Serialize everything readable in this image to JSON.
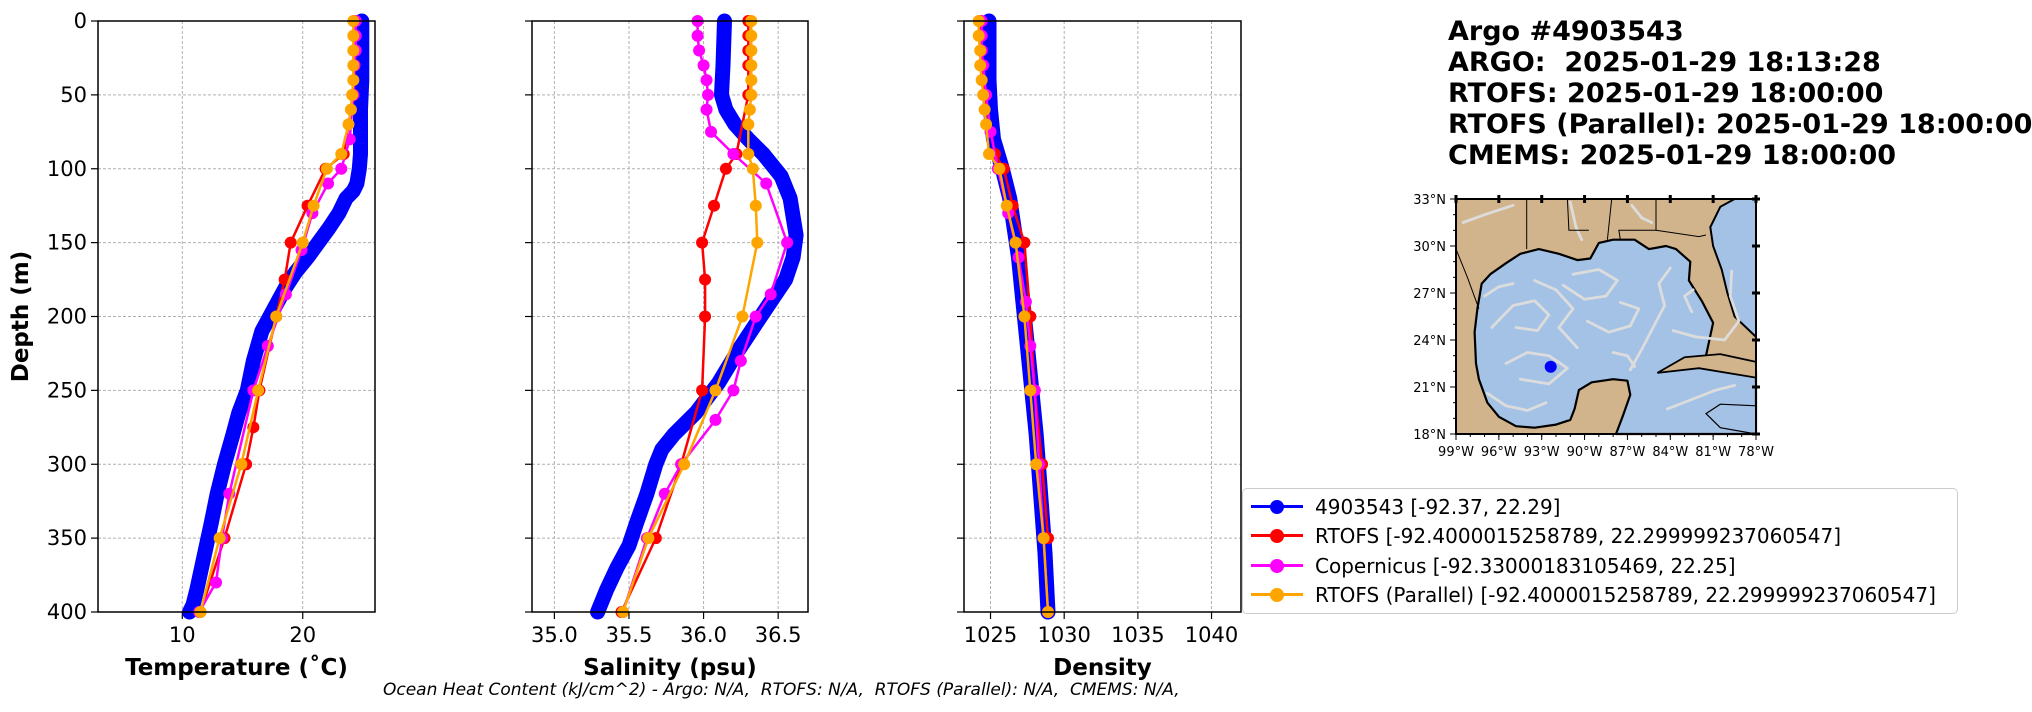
{
  "title_lines": {
    "line1": "Argo #4903543",
    "line2": "ARGO:  2025-01-29 18:13:28",
    "line3": "RTOFS: 2025-01-29 18:00:00",
    "line4": "RTOFS (Parallel): 2025-01-29 18:00:00",
    "line5": "CMEMS: 2025-01-29 18:00:00"
  },
  "footer": {
    "ohc": "Ocean Heat Content (kJ/cm^2) - Argo: N/A,  RTOFS: N/A,  RTOFS (Parallel): N/A,  CMEMS: N/A,"
  },
  "colors": {
    "argo": "#0000ff",
    "rtofs": "#ff0000",
    "copernicus": "#ff00ff",
    "rtofs_parallel": "#ffa500",
    "land": "#d2b48c",
    "ocean": "#a4c2e6",
    "streamline": "#dcdcdc"
  },
  "legend": [
    {
      "label": "4903543 [-92.37, 22.29]",
      "color": "#0000ff"
    },
    {
      "label": "RTOFS [-92.4000015258789, 22.299999237060547]",
      "color": "#ff0000"
    },
    {
      "label": "Copernicus [-92.33000183105469, 22.25]",
      "color": "#ff00ff"
    },
    {
      "label": "RTOFS (Parallel) [-92.4000015258789, 22.299999237060547]",
      "color": "#ffa500"
    }
  ],
  "chart_data": [
    {
      "type": "line",
      "xlabel": "Temperature (˚C)",
      "ylabel": "Depth (m)",
      "xlim": [
        3,
        26
      ],
      "ylim": [
        400,
        0
      ],
      "xticks": [
        10,
        20
      ],
      "yticks": [
        0,
        50,
        100,
        150,
        200,
        250,
        300,
        350,
        400
      ],
      "grid": true,
      "series": [
        {
          "name": "4903543 [-92.37, 22.29]",
          "key": "argo",
          "x": [
            24.9,
            24.9,
            24.9,
            24.8,
            24.8,
            24.8,
            24.7,
            24.6,
            24.5,
            24.2,
            23.6,
            23.0,
            22.2,
            21.3,
            20.4,
            19.4,
            18.6,
            17.6,
            16.6,
            15.9,
            15.4,
            14.7,
            14.2,
            13.5,
            12.9,
            12.4,
            12.0,
            11.6,
            11.2,
            10.9,
            10.6
          ],
          "y": [
            0,
            20,
            40,
            60,
            80,
            90,
            100,
            105,
            110,
            115,
            120,
            130,
            140,
            150,
            160,
            170,
            180,
            195,
            210,
            230,
            250,
            265,
            280,
            300,
            320,
            340,
            355,
            370,
            385,
            395,
            400
          ]
        },
        {
          "name": "RTOFS [-92.4000015258789, 22.299999237060547]",
          "key": "rtofs",
          "x": [
            24.3,
            24.3,
            24.3,
            24.3,
            24.2,
            23.4,
            21.9,
            20.4,
            19.0,
            18.5,
            17.8,
            16.4,
            15.9,
            15.3,
            13.5,
            11.5
          ],
          "y": [
            0,
            10,
            20,
            30,
            50,
            90,
            100,
            125,
            150,
            175,
            200,
            250,
            275,
            300,
            350,
            400
          ]
        },
        {
          "name": "Copernicus [-92.33000183105469, 22.25]",
          "key": "copernicus",
          "x": [
            24.4,
            24.4,
            24.4,
            24.3,
            24.2,
            23.9,
            23.2,
            22.1,
            20.8,
            19.9,
            18.6,
            17.1,
            15.9,
            13.9,
            13.3,
            12.8,
            11.4
          ],
          "y": [
            0,
            10,
            20,
            30,
            50,
            80,
            100,
            110,
            130,
            155,
            185,
            220,
            250,
            320,
            350,
            380,
            400
          ]
        },
        {
          "name": "RTOFS (Parallel) [-92.4000015258789, 22.299999237060547]",
          "key": "rtofs_parallel",
          "x": [
            24.2,
            24.2,
            24.2,
            24.2,
            24.2,
            24.1,
            24.0,
            23.8,
            23.2,
            22.0,
            20.9,
            20.0,
            17.8,
            16.3,
            14.9,
            13.1,
            11.5
          ],
          "y": [
            0,
            10,
            20,
            30,
            40,
            50,
            60,
            70,
            90,
            100,
            125,
            150,
            200,
            250,
            300,
            350,
            400
          ]
        }
      ]
    },
    {
      "type": "line",
      "xlabel": "Salinity (psu)",
      "ylabel": "",
      "xlim": [
        34.85,
        36.7
      ],
      "ylim": [
        400,
        0
      ],
      "xticks": [
        35.0,
        35.5,
        36.0,
        36.5
      ],
      "yticks": [
        0,
        50,
        100,
        150,
        200,
        250,
        300,
        350,
        400
      ],
      "grid": true,
      "series": [
        {
          "name": "4903543 [-92.37, 22.29]",
          "key": "argo",
          "x": [
            36.14,
            36.13,
            36.12,
            36.15,
            36.21,
            36.3,
            36.4,
            36.52,
            36.58,
            36.62,
            36.6,
            36.55,
            36.45,
            36.35,
            36.22,
            36.1,
            35.95,
            35.8,
            35.72,
            35.68,
            35.62,
            35.55,
            35.5,
            35.42,
            35.35,
            35.29
          ],
          "y": [
            0,
            30,
            50,
            60,
            70,
            80,
            90,
            105,
            120,
            145,
            160,
            175,
            190,
            205,
            225,
            245,
            265,
            280,
            290,
            300,
            320,
            340,
            355,
            370,
            385,
            400
          ]
        },
        {
          "name": "RTOFS [-92.4000015258789, 22.299999237060547]",
          "key": "rtofs",
          "x": [
            36.3,
            36.3,
            36.3,
            36.3,
            36.3,
            36.22,
            36.15,
            36.07,
            35.99,
            36.01,
            36.01,
            35.99,
            35.85,
            35.68,
            35.45
          ],
          "y": [
            0,
            10,
            20,
            30,
            50,
            90,
            100,
            125,
            150,
            175,
            200,
            250,
            300,
            350,
            400
          ]
        },
        {
          "name": "Copernicus [-92.33000183105469, 22.25]",
          "key": "copernicus",
          "x": [
            35.96,
            35.96,
            35.97,
            36.0,
            36.02,
            36.03,
            36.02,
            36.05,
            36.2,
            36.42,
            36.56,
            36.45,
            36.35,
            36.25,
            36.2,
            36.08,
            35.85,
            35.74,
            35.62,
            35.46
          ],
          "y": [
            0,
            10,
            20,
            30,
            40,
            50,
            60,
            75,
            90,
            110,
            150,
            185,
            200,
            230,
            250,
            270,
            300,
            320,
            350,
            400
          ]
        },
        {
          "name": "RTOFS (Parallel) [-92.4000015258789, 22.299999237060547]",
          "key": "rtofs_parallel",
          "x": [
            36.32,
            36.32,
            36.32,
            36.32,
            36.32,
            36.32,
            36.31,
            36.3,
            36.3,
            36.33,
            36.35,
            36.36,
            36.26,
            36.08,
            35.87,
            35.63,
            35.46
          ],
          "y": [
            0,
            10,
            20,
            30,
            40,
            50,
            60,
            70,
            90,
            100,
            125,
            150,
            200,
            250,
            300,
            350,
            400
          ]
        }
      ]
    },
    {
      "type": "line",
      "xlabel": "Density",
      "ylabel": "",
      "xlim": [
        1023.2,
        1042
      ],
      "ylim": [
        400,
        0
      ],
      "xticks": [
        1025,
        1030,
        1035,
        1040
      ],
      "yticks": [
        0,
        50,
        100,
        150,
        200,
        250,
        300,
        350,
        400
      ],
      "grid": true,
      "series": [
        {
          "name": "4903543 [-92.37, 22.29]",
          "key": "argo",
          "x": [
            1024.9,
            1024.9,
            1024.9,
            1025.0,
            1025.2,
            1025.8,
            1026.3,
            1026.6,
            1026.9,
            1027.2,
            1027.5,
            1027.8,
            1028.1,
            1028.4,
            1028.7,
            1028.9
          ],
          "y": [
            0,
            20,
            40,
            60,
            80,
            100,
            120,
            140,
            160,
            190,
            220,
            250,
            280,
            320,
            360,
            400
          ]
        },
        {
          "name": "RTOFS [-92.4000015258789, 22.299999237060547]",
          "key": "rtofs",
          "x": [
            1024.3,
            1024.3,
            1024.4,
            1024.4,
            1024.6,
            1025.3,
            1025.9,
            1026.5,
            1027.3,
            1027.7,
            1028.0,
            1028.5,
            1028.9
          ],
          "y": [
            0,
            10,
            20,
            30,
            50,
            90,
            100,
            125,
            150,
            200,
            250,
            300,
            350
          ]
        },
        {
          "name": "Copernicus [-92.33000183105469, 22.25]",
          "key": "copernicus",
          "x": [
            1024.4,
            1024.4,
            1024.4,
            1024.5,
            1024.7,
            1025.0,
            1025.5,
            1026.2,
            1026.9,
            1027.4,
            1027.7,
            1028.0,
            1028.3,
            1028.6,
            1028.9
          ],
          "y": [
            0,
            10,
            20,
            30,
            50,
            75,
            100,
            130,
            160,
            190,
            220,
            250,
            300,
            350,
            400
          ]
        },
        {
          "name": "RTOFS (Parallel) [-92.4000015258789, 22.299999237060547]",
          "key": "rtofs_parallel",
          "x": [
            1024.2,
            1024.2,
            1024.3,
            1024.3,
            1024.4,
            1024.5,
            1024.6,
            1024.7,
            1024.9,
            1025.6,
            1026.1,
            1026.7,
            1027.3,
            1027.7,
            1028.1,
            1028.6,
            1028.9
          ],
          "y": [
            0,
            10,
            20,
            30,
            40,
            50,
            60,
            70,
            90,
            100,
            125,
            150,
            200,
            250,
            300,
            350,
            400
          ]
        }
      ]
    }
  ],
  "map": {
    "lat_ticks": [
      "33°N",
      "30°N",
      "27°N",
      "24°N",
      "21°N",
      "18°N"
    ],
    "lon_ticks": [
      "99°W",
      "96°W",
      "93°W",
      "90°W",
      "87°W",
      "84°W",
      "81°W",
      "78°W"
    ],
    "lon_range": [
      -99,
      -78
    ],
    "lat_range": [
      18,
      33
    ],
    "float_position": [
      -92.37,
      22.29
    ]
  }
}
